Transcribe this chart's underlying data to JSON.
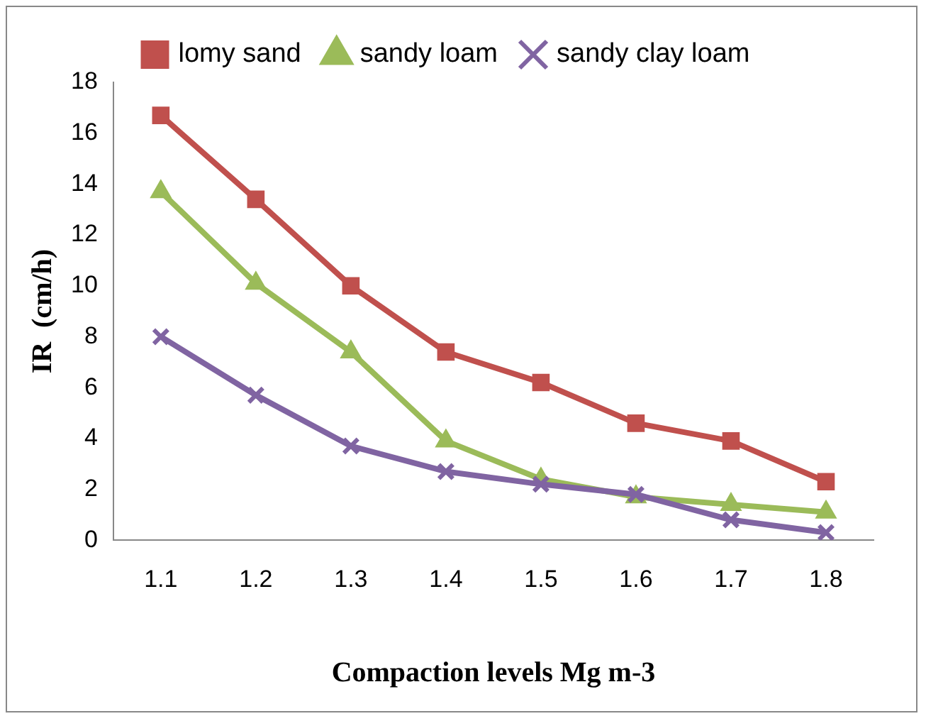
{
  "chart_data": {
    "type": "line",
    "xlabel": "Compaction levels Mg m-3",
    "ylabel": "IR  (cm/h)",
    "categories": [
      "1.1",
      "1.2",
      "1.3",
      "1.4",
      "1.5",
      "1.6",
      "1.7",
      "1.8"
    ],
    "series": [
      {
        "name": "lomy sand",
        "color": "#c0504d",
        "marker": "square",
        "values": [
          16.7,
          13.4,
          10.0,
          7.4,
          6.2,
          4.6,
          3.9,
          2.3
        ]
      },
      {
        "name": "sandy loam",
        "color": "#9bbb59",
        "marker": "triangle",
        "values": [
          13.7,
          10.1,
          7.4,
          3.9,
          2.4,
          1.7,
          1.4,
          1.1
        ]
      },
      {
        "name": "sandy clay loam",
        "color": "#8064a2",
        "marker": "cross",
        "values": [
          8.0,
          5.7,
          3.7,
          2.7,
          2.2,
          1.8,
          0.8,
          0.3
        ]
      }
    ],
    "ylim": [
      0,
      18
    ],
    "yticks": [
      0,
      2,
      4,
      6,
      8,
      10,
      12,
      14,
      16,
      18
    ],
    "grid": false,
    "legend": "top",
    "line_style": "solid"
  }
}
